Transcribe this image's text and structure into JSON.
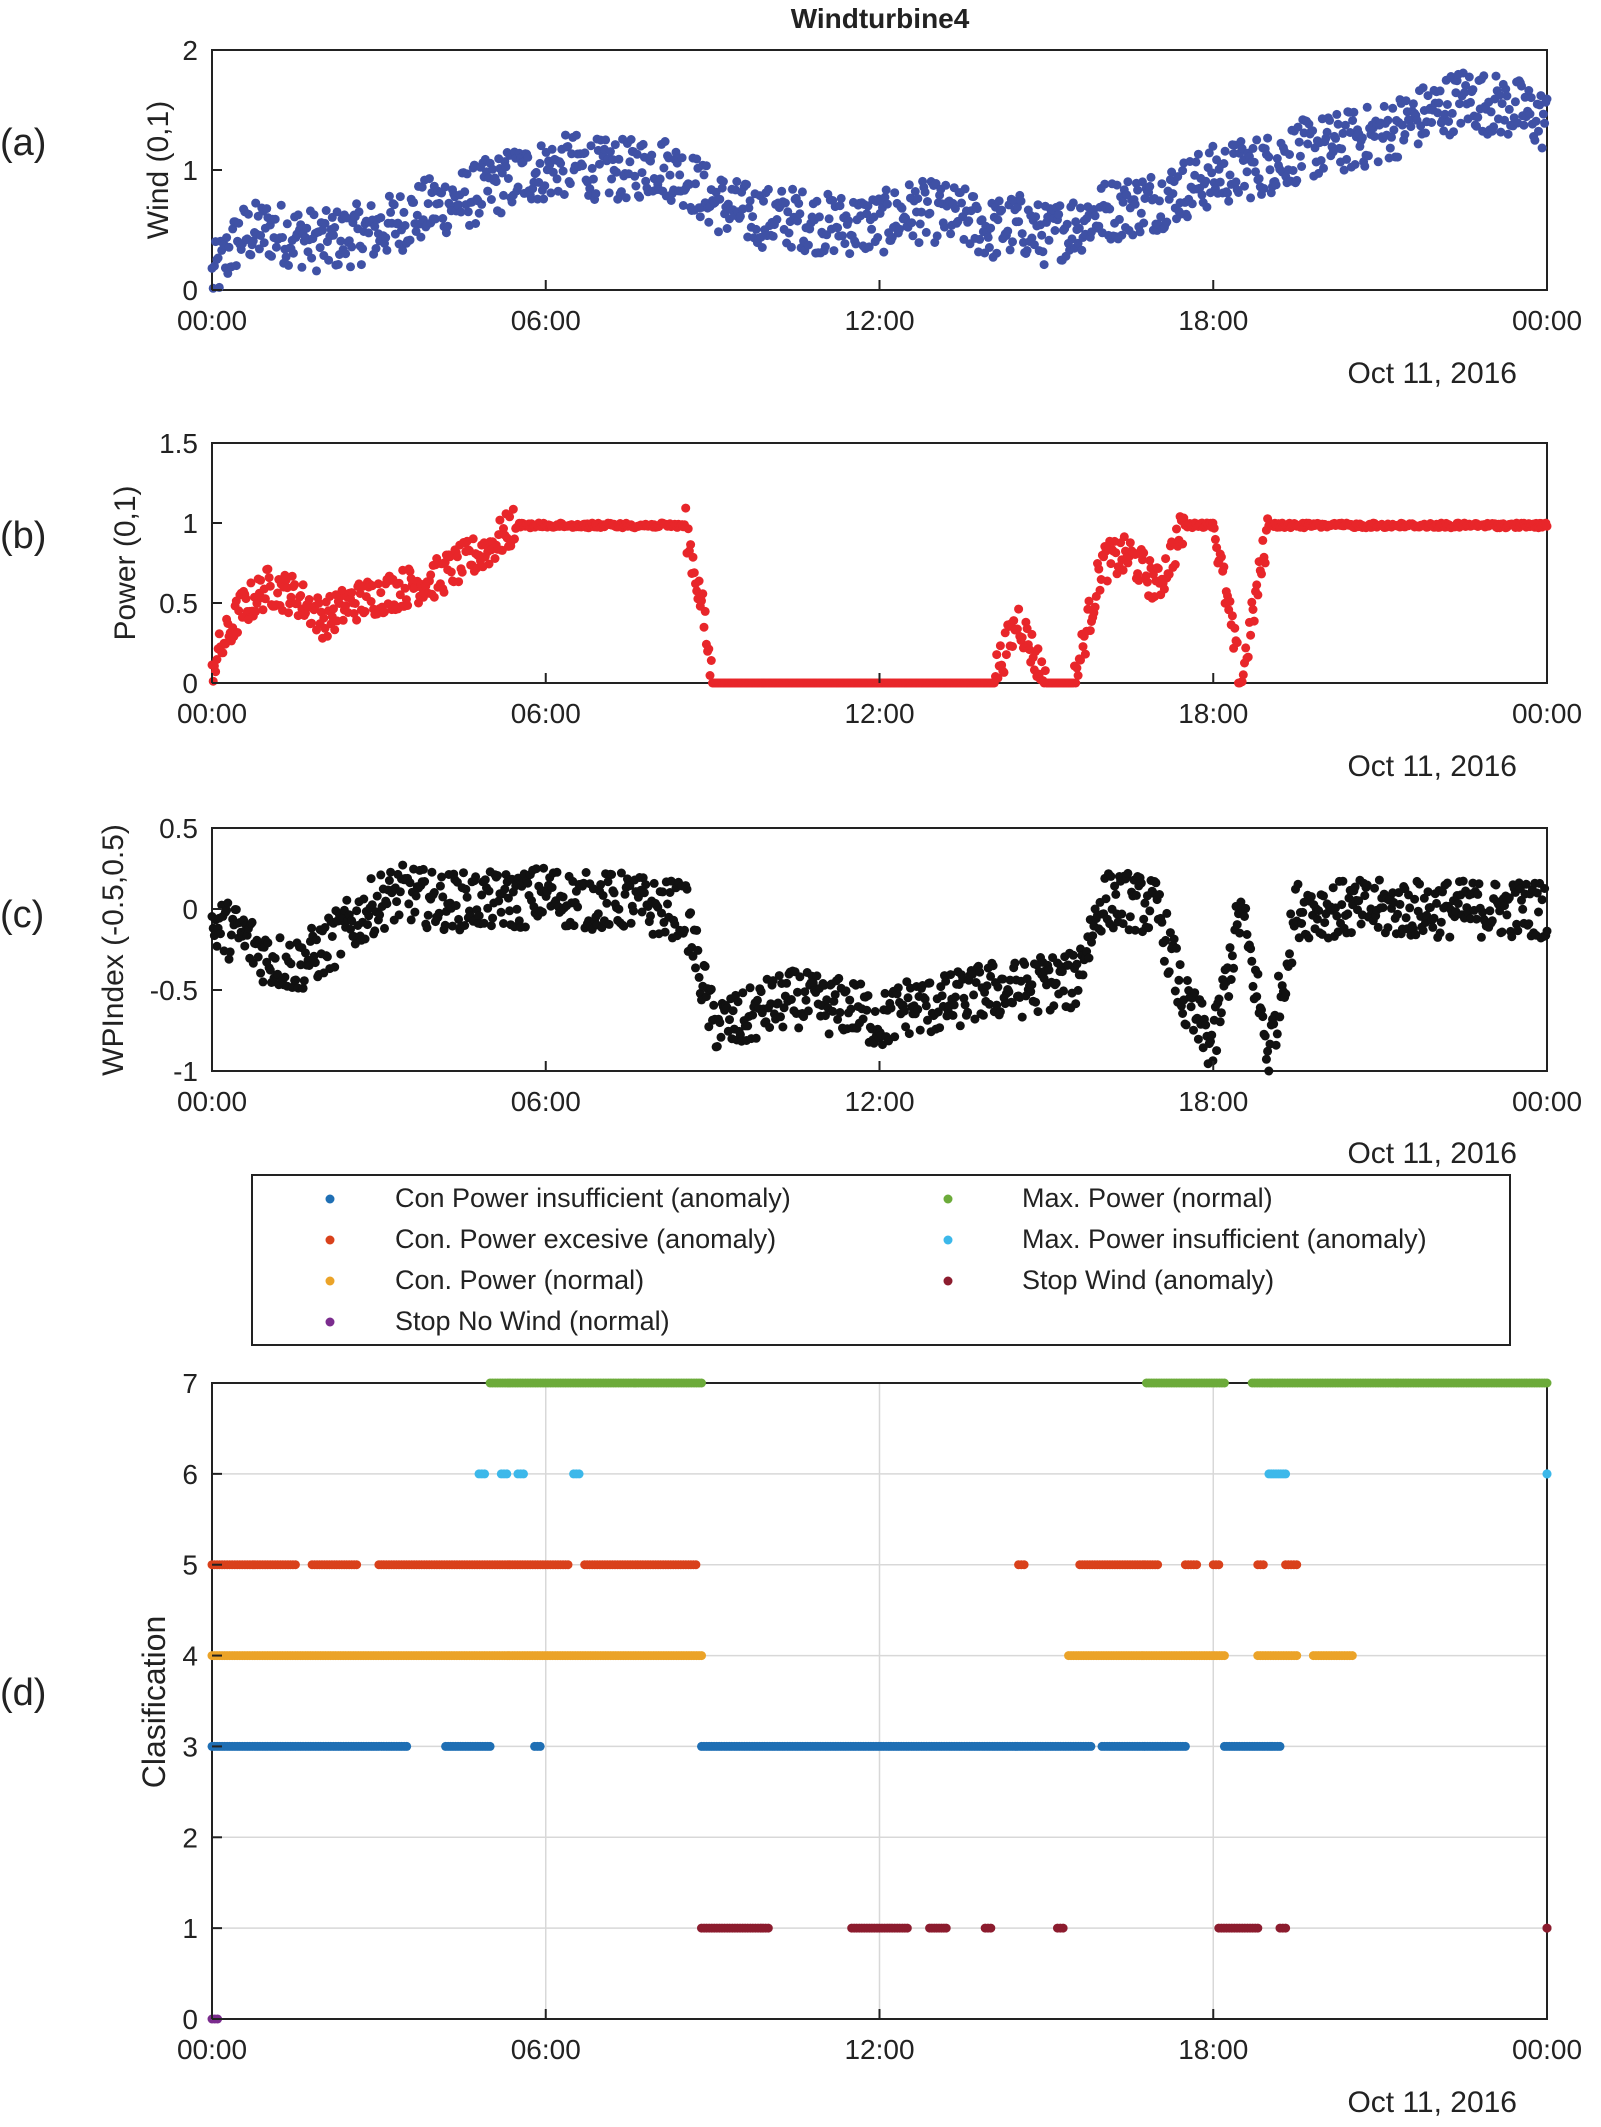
{
  "figure": {
    "title": "Windturbine4",
    "date_label": "Oct 11, 2016",
    "x_tick_labels": [
      "00:00",
      "06:00",
      "12:00",
      "18:00",
      "00:00"
    ]
  },
  "chart_data": [
    {
      "panel": "(a)",
      "type": "scatter",
      "title": "Windturbine4",
      "ylabel": "Wind (0,1)",
      "xlabel": "Oct 11, 2016",
      "xlim": [
        0,
        24
      ],
      "ylim": [
        0,
        2
      ],
      "y_ticks": [
        0,
        1,
        2
      ],
      "color": "#3f51a5",
      "grid": false,
      "series": [
        {
          "x": [
            0.0,
            0.5,
            1.0,
            1.5,
            2.0,
            2.5,
            3.0,
            3.5,
            4.0,
            4.5,
            5.0,
            5.5,
            6.0,
            6.5,
            7.0,
            7.5,
            8.0,
            8.5,
            9.0,
            9.5,
            10.0,
            10.5,
            11.0,
            11.5,
            12.0,
            12.5,
            13.0,
            13.5,
            14.0,
            14.5,
            15.0,
            15.5,
            16.0,
            16.5,
            17.0,
            17.5,
            18.0,
            18.5,
            19.0,
            19.5,
            20.0,
            20.5,
            21.0,
            21.5,
            22.0,
            22.5,
            23.0,
            23.5,
            24.0
          ],
          "y": [
            0.1,
            0.45,
            0.5,
            0.45,
            0.4,
            0.45,
            0.5,
            0.6,
            0.7,
            0.75,
            0.85,
            0.95,
            1.0,
            1.05,
            1.0,
            1.0,
            1.05,
            0.95,
            0.75,
            0.65,
            0.6,
            0.6,
            0.55,
            0.55,
            0.55,
            0.65,
            0.65,
            0.6,
            0.5,
            0.55,
            0.45,
            0.55,
            0.65,
            0.7,
            0.75,
            0.85,
            0.95,
            1.0,
            1.05,
            1.15,
            1.2,
            1.25,
            1.3,
            1.4,
            1.5,
            1.6,
            1.55,
            1.5,
            1.4
          ]
        }
      ]
    },
    {
      "panel": "(b)",
      "type": "scatter",
      "ylabel": "Power (0,1)",
      "xlabel": "Oct 11, 2016",
      "xlim": [
        0,
        24
      ],
      "ylim": [
        0,
        1.5
      ],
      "y_ticks": [
        0,
        0.5,
        1,
        1.5
      ],
      "color": "#e8262a",
      "grid": false,
      "series": [
        {
          "x": [
            0.0,
            0.5,
            1.0,
            1.5,
            2.0,
            2.5,
            3.0,
            3.5,
            4.0,
            4.5,
            5.0,
            5.5,
            6.0,
            6.5,
            7.0,
            7.5,
            8.0,
            8.5,
            8.8,
            9.0,
            10.0,
            11.0,
            12.0,
            13.0,
            14.0,
            14.5,
            15.0,
            15.5,
            16.0,
            16.5,
            17.0,
            17.5,
            18.0,
            18.5,
            19.0,
            19.5,
            20.0,
            21.0,
            22.0,
            23.0,
            24.0
          ],
          "y": [
            0.1,
            0.45,
            0.6,
            0.55,
            0.4,
            0.5,
            0.55,
            0.6,
            0.65,
            0.75,
            0.85,
            1.0,
            1.0,
            1.0,
            1.0,
            1.0,
            1.0,
            1.0,
            0.5,
            0.0,
            0.0,
            0.0,
            0.0,
            0.0,
            0.0,
            0.4,
            0.0,
            0.0,
            0.75,
            0.8,
            0.6,
            1.0,
            1.0,
            0.0,
            1.0,
            1.0,
            1.0,
            1.0,
            1.0,
            1.0,
            1.0
          ]
        }
      ]
    },
    {
      "panel": "(c)",
      "type": "scatter",
      "ylabel": "WPIndex (-0.5,0.5)",
      "xlabel": "Oct 11, 2016",
      "xlim": [
        0,
        24
      ],
      "ylim": [
        -1,
        0.5
      ],
      "y_ticks": [
        -1,
        -0.5,
        0,
        0.5
      ],
      "color": "#111111",
      "grid": false,
      "series": [
        {
          "x": [
            0.0,
            0.5,
            1.0,
            1.5,
            2.0,
            2.5,
            3.0,
            3.5,
            4.0,
            4.5,
            5.0,
            5.5,
            6.0,
            6.5,
            7.0,
            7.5,
            8.0,
            8.5,
            9.0,
            9.5,
            10.0,
            10.5,
            11.0,
            11.5,
            12.0,
            12.5,
            13.0,
            13.5,
            14.0,
            14.5,
            15.0,
            15.5,
            16.0,
            16.5,
            17.0,
            17.5,
            18.0,
            18.5,
            19.0,
            19.5,
            20.0,
            21.0,
            22.0,
            23.0,
            24.0
          ],
          "y": [
            -0.1,
            -0.15,
            -0.3,
            -0.35,
            -0.25,
            -0.1,
            0.05,
            0.1,
            0.05,
            0.05,
            0.05,
            0.05,
            0.1,
            0.05,
            0.05,
            0.05,
            0.0,
            0.0,
            -0.7,
            -0.7,
            -0.6,
            -0.55,
            -0.6,
            -0.6,
            -0.7,
            -0.6,
            -0.6,
            -0.55,
            -0.5,
            -0.5,
            -0.45,
            -0.45,
            0.05,
            0.05,
            0.0,
            -0.6,
            -0.85,
            0.0,
            -0.9,
            0.0,
            0.0,
            0.0,
            0.0,
            0.0,
            0.0
          ]
        }
      ]
    },
    {
      "panel": "(d)",
      "type": "scatter",
      "ylabel": "Clasification",
      "xlabel": "Oct 11, 2016",
      "xlim": [
        0,
        24
      ],
      "ylim": [
        0,
        7
      ],
      "y_ticks": [
        0,
        1,
        2,
        3,
        4,
        5,
        6,
        7
      ],
      "grid": true,
      "legend_position": "top-center",
      "series": [
        {
          "name": "Con Power  insufficient (anomaly)",
          "color": "#1f6fb4",
          "class": 3,
          "segments": [
            [
              0.0,
              3.5
            ],
            [
              4.2,
              5.0
            ],
            [
              5.8,
              5.9
            ],
            [
              8.8,
              15.8
            ],
            [
              16.0,
              17.5
            ],
            [
              18.2,
              19.2
            ]
          ]
        },
        {
          "name": "Con. Power  excesive (anomaly)",
          "color": "#d9411b",
          "class": 5,
          "segments": [
            [
              0.0,
              1.5
            ],
            [
              1.8,
              2.6
            ],
            [
              3.0,
              6.4
            ],
            [
              6.7,
              8.7
            ],
            [
              14.5,
              14.6
            ],
            [
              15.6,
              17.0
            ],
            [
              17.5,
              17.7
            ],
            [
              18.0,
              18.1
            ],
            [
              18.8,
              18.9
            ],
            [
              19.3,
              19.5
            ]
          ]
        },
        {
          "name": "Con. Power (normal)",
          "color": "#eba328",
          "class": 4,
          "segments": [
            [
              0.0,
              8.8
            ],
            [
              15.4,
              18.2
            ],
            [
              18.8,
              19.5
            ],
            [
              19.8,
              20.5
            ]
          ]
        },
        {
          "name": "Stop No Wind (normal)",
          "color": "#7b2c8e",
          "class": 0,
          "segments": [
            [
              0.0,
              0.1
            ]
          ]
        },
        {
          "name": "Max. Power (normal)",
          "color": "#6cab3a",
          "class": 7,
          "segments": [
            [
              5.0,
              8.8
            ],
            [
              16.8,
              18.2
            ],
            [
              18.7,
              24.0
            ]
          ]
        },
        {
          "name": "Max. Power insufficient (anomaly)",
          "color": "#3cb8ea",
          "class": 6,
          "segments": [
            [
              4.8,
              4.9
            ],
            [
              5.2,
              5.3
            ],
            [
              5.5,
              5.6
            ],
            [
              6.5,
              6.6
            ],
            [
              19.0,
              19.3
            ],
            [
              24.0,
              24.0
            ]
          ]
        },
        {
          "name": "Stop Wind (anomaly)",
          "color": "#8c1c2e",
          "class": 1,
          "segments": [
            [
              8.8,
              10.0
            ],
            [
              11.5,
              12.5
            ],
            [
              12.9,
              13.2
            ],
            [
              13.9,
              14.0
            ],
            [
              15.2,
              15.3
            ],
            [
              18.1,
              18.8
            ],
            [
              19.2,
              19.3
            ],
            [
              24.0,
              24.0
            ]
          ]
        }
      ]
    }
  ],
  "legend": {
    "col1": [
      "Con Power  insufficient (anomaly)",
      "Con. Power  excesive (anomaly)",
      "Con. Power (normal)",
      "Stop No Wind (normal)"
    ],
    "col2": [
      "Max. Power (normal)",
      "Max. Power insufficient (anomaly)",
      "Stop Wind (anomaly)"
    ]
  }
}
